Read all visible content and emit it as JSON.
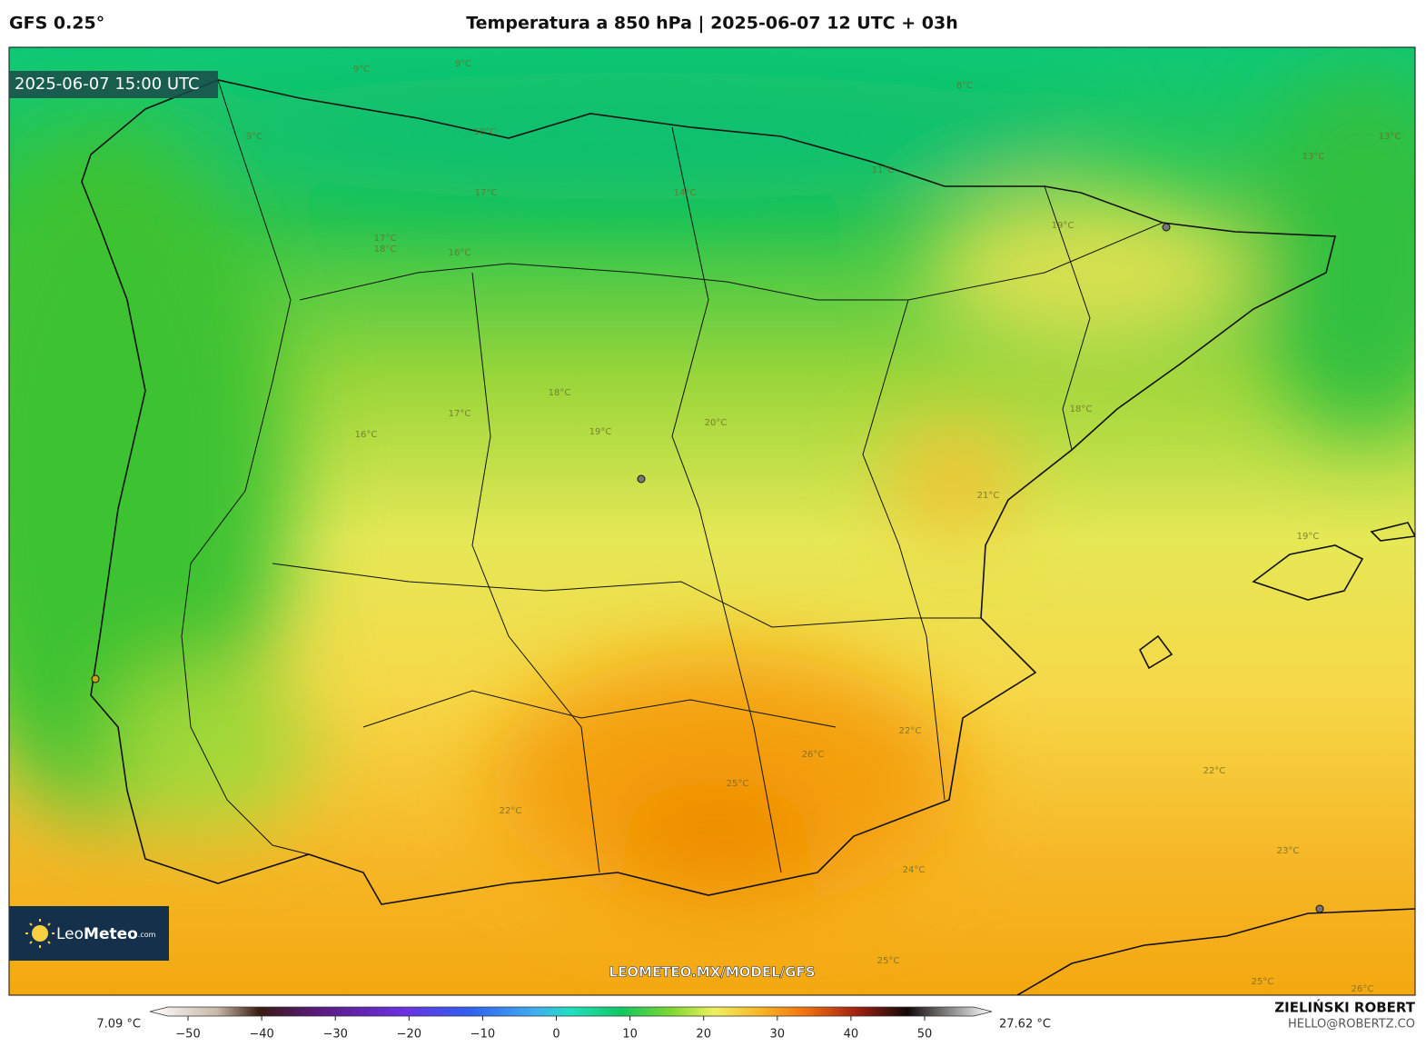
{
  "header": {
    "model": "GFS 0.25°",
    "title": "Temperatura a 850 hPa | 2025-06-07 12 UTC + 03h"
  },
  "map": {
    "valid_time": "2025-06-07 15:00 UTC",
    "contour_labels": [
      "9°C",
      "9°C",
      "9°C",
      "8°C",
      "10°C",
      "11°C",
      "13°C",
      "13°C",
      "14°C",
      "17°C",
      "17°C",
      "18°C",
      "16°C",
      "16°C",
      "17°C",
      "18°C",
      "19°C",
      "19°C",
      "20°C",
      "18°C",
      "21°C",
      "19°C",
      "22°C",
      "22°C",
      "22°C",
      "23°C",
      "24°C",
      "25°C",
      "26°C",
      "25°C",
      "25°C",
      "26°C"
    ],
    "watermark": "LEOMETEO.MX/MODEL/GFS",
    "logo": {
      "brand_a": "Leo",
      "brand_b": "Meteo",
      "suffix": ".com"
    }
  },
  "colorbar": {
    "min_label": "7.09 °C",
    "max_label": "27.62 °C",
    "ticks": [
      {
        "value": -50,
        "label": "−50"
      },
      {
        "value": -40,
        "label": "−40"
      },
      {
        "value": -30,
        "label": "−30"
      },
      {
        "value": -20,
        "label": "−20"
      },
      {
        "value": -10,
        "label": "−10"
      },
      0,
      10,
      20,
      30,
      40,
      50
    ]
  },
  "credits": {
    "author": "ZIELIŃSKI ROBERT",
    "email": "HELLO@ROBERTZ.CO"
  }
}
